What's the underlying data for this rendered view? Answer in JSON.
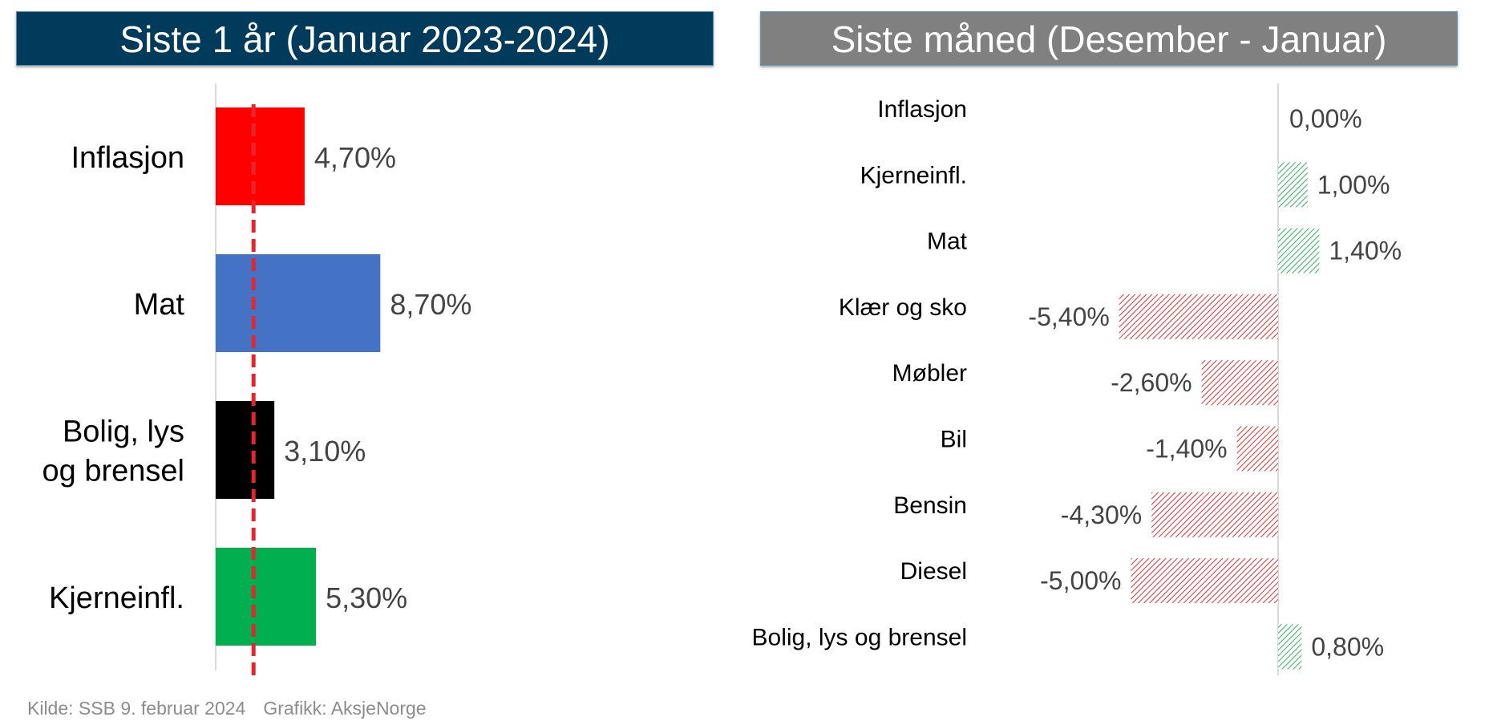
{
  "headers": {
    "left": "Siste 1 år (Januar 2023-2024)",
    "right": "Siste måned (Desember - Januar)"
  },
  "colors": {
    "left_header_bg": "#003b5c",
    "right_header_bg": "#808080",
    "positive_hatch": "#2fb35a",
    "negative_hatch": "#e0302f",
    "reference_line": "#e6262e"
  },
  "chart_data": [
    {
      "type": "bar",
      "orientation": "horizontal",
      "title": "Siste 1 år (Januar 2023-2024)",
      "categories": [
        [
          "Inflasjon"
        ],
        [
          "Mat"
        ],
        [
          "Bolig, lys",
          "og brensel"
        ],
        [
          "Kjerneinfl."
        ]
      ],
      "values": [
        4.7,
        8.7,
        3.1,
        5.3
      ],
      "value_labels": [
        "4,70%",
        "8,70%",
        "3,10%",
        "5,30%"
      ],
      "bar_colors": [
        "#ff0000",
        "#4472c4",
        "#000000",
        "#00b050"
      ],
      "xlim": [
        0,
        12
      ],
      "reference_line": 2.0,
      "grid": false
    },
    {
      "type": "bar",
      "orientation": "horizontal",
      "title": "Siste måned (Desember - Januar)",
      "categories": [
        "Inflasjon",
        "Kjerneinfl.",
        "Mat",
        "Klær og sko",
        "Møbler",
        "Bil",
        "Bensin",
        "Diesel",
        "Bolig, lys og brensel"
      ],
      "values": [
        0.0,
        1.0,
        1.4,
        -5.4,
        -2.6,
        -1.4,
        -4.3,
        -5.0,
        0.8
      ],
      "value_labels": [
        "0,00%",
        "1,00%",
        "1,40%",
        "-5,40%",
        "-2,60%",
        "-1,40%",
        "-4,30%",
        "-5,00%",
        "0,80%"
      ],
      "xlim": [
        -6.5,
        6.5
      ],
      "grid": false
    }
  ],
  "footer": {
    "source": "Kilde: SSB 9. februar 2024",
    "credit": "Grafikk: AksjeNorge"
  }
}
